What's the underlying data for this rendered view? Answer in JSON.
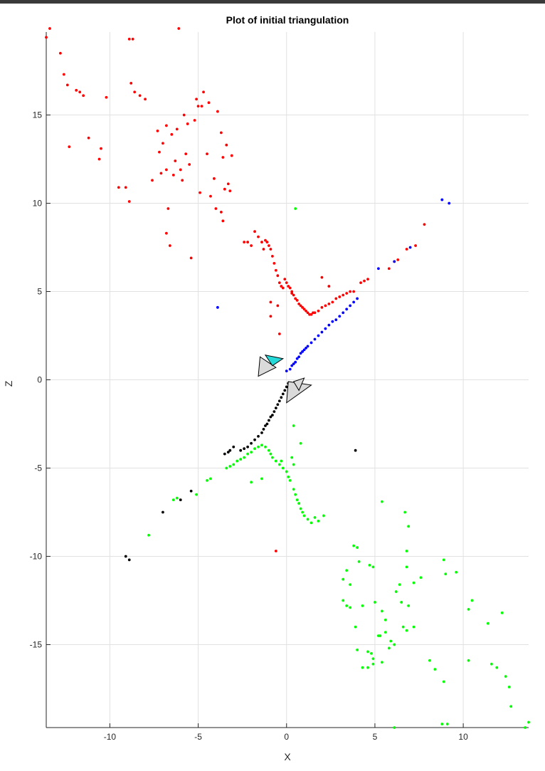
{
  "chart_data": {
    "type": "scatter",
    "title": "Plot of initial triangulation",
    "xlabel": "X",
    "ylabel": "Z",
    "xlim": [
      -13.6,
      13.7
    ],
    "ylim": [
      -19.7,
      19.7
    ],
    "xticks": [
      -10,
      -5,
      0,
      5,
      10
    ],
    "yticks": [
      -15,
      -10,
      -5,
      0,
      5,
      10,
      15
    ],
    "grid": true,
    "series": [
      {
        "color": "#ff0000",
        "points": [
          [
            -13.6,
            19.4
          ],
          [
            -13.4,
            19.9
          ],
          [
            -12.8,
            18.5
          ],
          [
            -12.6,
            17.3
          ],
          [
            -12.4,
            16.7
          ],
          [
            -12.3,
            13.2
          ],
          [
            -11.9,
            16.4
          ],
          [
            -11.7,
            16.3
          ],
          [
            -11.5,
            16.1
          ],
          [
            -11.2,
            13.7
          ],
          [
            -10.6,
            12.5
          ],
          [
            -10.5,
            13.1
          ],
          [
            -10.2,
            16
          ],
          [
            -9.5,
            10.9
          ],
          [
            -9.1,
            10.9
          ],
          [
            -8.9,
            19.3
          ],
          [
            -8.9,
            10.1
          ],
          [
            -8.7,
            19.3
          ],
          [
            -8.8,
            16.8
          ],
          [
            -8.6,
            16.3
          ],
          [
            -8.3,
            16.1
          ],
          [
            -8,
            15.9
          ],
          [
            -7.6,
            11.3
          ],
          [
            -7.3,
            14.1
          ],
          [
            -7.2,
            12.9
          ],
          [
            -7.1,
            11.7
          ],
          [
            -7,
            13.4
          ],
          [
            -6.8,
            11.9
          ],
          [
            -6.8,
            14.4
          ],
          [
            -6.7,
            9.7
          ],
          [
            -6.6,
            7.6
          ],
          [
            -6.8,
            8.3
          ],
          [
            -6.5,
            13.9
          ],
          [
            -6.4,
            11.6
          ],
          [
            -6.3,
            12.4
          ],
          [
            -6.2,
            14.2
          ],
          [
            -6.1,
            19.9
          ],
          [
            -6,
            11.9
          ],
          [
            -5.9,
            11.3
          ],
          [
            -5.8,
            15
          ],
          [
            -5.7,
            12.8
          ],
          [
            -5.6,
            14.5
          ],
          [
            -5.5,
            12.2
          ],
          [
            -5.4,
            6.9
          ],
          [
            -5.2,
            14.7
          ],
          [
            -5.1,
            15.9
          ],
          [
            -5,
            15.5
          ],
          [
            -4.9,
            10.6
          ],
          [
            -4.8,
            15.5
          ],
          [
            -4.7,
            16.3
          ],
          [
            -4.5,
            12.8
          ],
          [
            -4.4,
            15.7
          ],
          [
            -4.3,
            10.4
          ],
          [
            -4.1,
            11.4
          ],
          [
            -4,
            9.7
          ],
          [
            -3.9,
            15.2
          ],
          [
            -3.7,
            14
          ],
          [
            -3.6,
            12.6
          ],
          [
            -3.5,
            10.8
          ],
          [
            -3.4,
            13.3
          ],
          [
            -3.3,
            11.1
          ],
          [
            -3.2,
            10.7
          ],
          [
            -3.1,
            12.7
          ],
          [
            -3.7,
            9.5
          ],
          [
            -3.6,
            9
          ],
          [
            -2.4,
            7.8
          ],
          [
            -2.2,
            7.8
          ],
          [
            -2,
            7.6
          ],
          [
            -1.8,
            8.4
          ],
          [
            -1.6,
            8.1
          ],
          [
            -1.4,
            7.8
          ],
          [
            -1.3,
            7.4
          ],
          [
            -1.2,
            7.9
          ],
          [
            -1.1,
            7.8
          ],
          [
            -1,
            7.6
          ],
          [
            -0.9,
            7.4
          ],
          [
            -0.8,
            7
          ],
          [
            -0.7,
            6.6
          ],
          [
            -0.6,
            6.2
          ],
          [
            -0.5,
            5.9
          ],
          [
            -0.4,
            5.5
          ],
          [
            -0.3,
            5.3
          ],
          [
            -0.2,
            5.2
          ],
          [
            -0.1,
            5.7
          ],
          [
            0,
            5.5
          ],
          [
            0.1,
            5.3
          ],
          [
            0.2,
            5.2
          ],
          [
            0.3,
            5
          ],
          [
            0.4,
            4.8
          ],
          [
            0.5,
            4.6
          ],
          [
            0.6,
            4.5
          ],
          [
            0.7,
            4.3
          ],
          [
            0.8,
            4.2
          ],
          [
            0.9,
            4.1
          ],
          [
            1,
            4
          ],
          [
            1.1,
            3.9
          ],
          [
            1.2,
            3.8
          ],
          [
            1.3,
            3.7
          ],
          [
            1.4,
            3.7
          ],
          [
            1.5,
            3.8
          ],
          [
            1.6,
            3.8
          ],
          [
            1.8,
            3.9
          ],
          [
            2,
            4.1
          ],
          [
            2.2,
            4.2
          ],
          [
            2.4,
            4.3
          ],
          [
            2.6,
            4.4
          ],
          [
            2.8,
            4.6
          ],
          [
            3,
            4.7
          ],
          [
            3.2,
            4.8
          ],
          [
            3.4,
            4.9
          ],
          [
            3.6,
            5
          ],
          [
            3.8,
            5
          ],
          [
            4.2,
            5.5
          ],
          [
            4.4,
            5.6
          ],
          [
            4.6,
            5.7
          ],
          [
            5.8,
            6.3
          ],
          [
            6.1,
            6.7
          ],
          [
            6.3,
            6.8
          ],
          [
            6.8,
            7.4
          ],
          [
            7.3,
            7.6
          ],
          [
            7.8,
            8.8
          ],
          [
            -0.9,
            3.6
          ],
          [
            -0.4,
            2.6
          ],
          [
            -0.9,
            4.4
          ],
          [
            -0.5,
            4.2
          ],
          [
            0.3,
            4.9
          ],
          [
            2,
            5.8
          ],
          [
            2.4,
            5.3
          ],
          [
            -0.6,
            -9.7
          ]
        ]
      },
      {
        "color": "#0000ff",
        "points": [
          [
            -3.9,
            4.1
          ],
          [
            0,
            0.5
          ],
          [
            0.2,
            0.6
          ],
          [
            0.3,
            0.8
          ],
          [
            0.4,
            0.9
          ],
          [
            0.5,
            1
          ],
          [
            0.6,
            1.2
          ],
          [
            0.7,
            1.3
          ],
          [
            0.8,
            1.5
          ],
          [
            0.9,
            1.6
          ],
          [
            1,
            1.7
          ],
          [
            1.1,
            1.8
          ],
          [
            1.2,
            1.9
          ],
          [
            1.4,
            2.1
          ],
          [
            1.6,
            2.3
          ],
          [
            1.8,
            2.5
          ],
          [
            2,
            2.7
          ],
          [
            2.2,
            2.9
          ],
          [
            2.4,
            3.1
          ],
          [
            2.6,
            3.3
          ],
          [
            2.8,
            3.4
          ],
          [
            3,
            3.6
          ],
          [
            3.2,
            3.8
          ],
          [
            3.4,
            4
          ],
          [
            3.6,
            4.2
          ],
          [
            3.8,
            4.4
          ],
          [
            4,
            4.6
          ],
          [
            5.2,
            6.3
          ],
          [
            6.1,
            6.7
          ],
          [
            7,
            7.5
          ],
          [
            8.8,
            10.2
          ],
          [
            9.2,
            10
          ]
        ]
      },
      {
        "color": "#000000",
        "points": [
          [
            0.1,
            -0.2
          ],
          [
            0,
            -0.4
          ],
          [
            -0.1,
            -0.6
          ],
          [
            -0.2,
            -0.8
          ],
          [
            -0.3,
            -1
          ],
          [
            -0.4,
            -1.2
          ],
          [
            -0.5,
            -1.4
          ],
          [
            -0.6,
            -1.6
          ],
          [
            -0.7,
            -1.8
          ],
          [
            -0.8,
            -2
          ],
          [
            -0.9,
            -2.1
          ],
          [
            -1,
            -2.3
          ],
          [
            -1.1,
            -2.5
          ],
          [
            -1.2,
            -2.6
          ],
          [
            -1.3,
            -2.8
          ],
          [
            -1.4,
            -3
          ],
          [
            -1.6,
            -3.2
          ],
          [
            -1.8,
            -3.4
          ],
          [
            -2,
            -3.6
          ],
          [
            -2.2,
            -3.8
          ],
          [
            -2.4,
            -3.9
          ],
          [
            -2.6,
            -4
          ],
          [
            -3,
            -3.8
          ],
          [
            -3.3,
            -4.1
          ],
          [
            -3.5,
            -4.2
          ],
          [
            -3.2,
            -4
          ],
          [
            -5.4,
            -6.3
          ],
          [
            -6,
            -6.8
          ],
          [
            -7,
            -7.5
          ],
          [
            -9.1,
            -10
          ],
          [
            -8.9,
            -10.2
          ],
          [
            3.9,
            -4
          ]
        ]
      },
      {
        "color": "#00ff00",
        "points": [
          [
            0.5,
            9.7
          ],
          [
            0.4,
            -2.6
          ],
          [
            0.8,
            -3.6
          ],
          [
            -7.8,
            -8.8
          ],
          [
            -6.4,
            -6.8
          ],
          [
            -6.2,
            -6.7
          ],
          [
            -5.1,
            -6.5
          ],
          [
            -4.5,
            -5.7
          ],
          [
            -4.3,
            -5.6
          ],
          [
            -3.4,
            -5
          ],
          [
            -3.2,
            -4.9
          ],
          [
            -3,
            -4.8
          ],
          [
            -2.8,
            -4.6
          ],
          [
            -2.6,
            -4.5
          ],
          [
            -2.4,
            -4.4
          ],
          [
            -2.2,
            -4.2
          ],
          [
            -2,
            -4.1
          ],
          [
            -1.8,
            -3.9
          ],
          [
            -1.6,
            -3.8
          ],
          [
            -1.4,
            -3.7
          ],
          [
            -1.2,
            -3.8
          ],
          [
            -1,
            -4
          ],
          [
            -0.9,
            -4.2
          ],
          [
            -0.8,
            -4.4
          ],
          [
            -0.6,
            -4.6
          ],
          [
            -0.4,
            -4.8
          ],
          [
            -0.2,
            -5
          ],
          [
            0,
            -5.2
          ],
          [
            0.1,
            -5.5
          ],
          [
            0.2,
            -5.7
          ],
          [
            -0.3,
            -4.6
          ],
          [
            0.3,
            -4.4
          ],
          [
            0.4,
            -4.8
          ],
          [
            0.4,
            -6.2
          ],
          [
            0.5,
            -6.5
          ],
          [
            0.6,
            -6.8
          ],
          [
            0.7,
            -7
          ],
          [
            0.8,
            -7.3
          ],
          [
            0.9,
            -7.5
          ],
          [
            1,
            -7.7
          ],
          [
            1.2,
            -7.9
          ],
          [
            1.4,
            -8.1
          ],
          [
            1.6,
            -7.8
          ],
          [
            1.8,
            -8
          ],
          [
            2.1,
            -7.7
          ],
          [
            -1.4,
            -5.6
          ],
          [
            -2,
            -5.8
          ],
          [
            5.4,
            -6.9
          ],
          [
            6.7,
            -7.5
          ],
          [
            6.9,
            -8.3
          ],
          [
            6.8,
            -9.7
          ],
          [
            6.8,
            -10.6
          ],
          [
            6.4,
            -11.6
          ],
          [
            6.2,
            -12
          ],
          [
            6.5,
            -12.6
          ],
          [
            6.9,
            -12.8
          ],
          [
            7.2,
            -11.5
          ],
          [
            7.6,
            -11.2
          ],
          [
            8.9,
            -10.2
          ],
          [
            9,
            -11
          ],
          [
            9.6,
            -10.9
          ],
          [
            3.8,
            -9.4
          ],
          [
            4,
            -9.5
          ],
          [
            4.1,
            -10.3
          ],
          [
            3.4,
            -10.8
          ],
          [
            3.2,
            -11.3
          ],
          [
            3.6,
            -11.6
          ],
          [
            3.2,
            -12.5
          ],
          [
            3.4,
            -12.8
          ],
          [
            3.6,
            -12.9
          ],
          [
            3.9,
            -14
          ],
          [
            4.3,
            -12.8
          ],
          [
            4.7,
            -10.5
          ],
          [
            4.9,
            -10.6
          ],
          [
            5,
            -12.6
          ],
          [
            5.4,
            -13.1
          ],
          [
            5.6,
            -13.6
          ],
          [
            5.3,
            -14.5
          ],
          [
            5.6,
            -14.3
          ],
          [
            5.9,
            -14.8
          ],
          [
            6.1,
            -15
          ],
          [
            6.6,
            -14
          ],
          [
            6.8,
            -14.2
          ],
          [
            7.2,
            -14
          ],
          [
            4,
            -15.3
          ],
          [
            4.6,
            -15.4
          ],
          [
            4.8,
            -15.5
          ],
          [
            4.9,
            -15.8
          ],
          [
            4.6,
            -16.3
          ],
          [
            4.3,
            -16.3
          ],
          [
            4.9,
            -16.1
          ],
          [
            5.2,
            -14.5
          ],
          [
            5.4,
            -16
          ],
          [
            5.8,
            -15.2
          ],
          [
            8.1,
            -15.9
          ],
          [
            8.4,
            -16.4
          ],
          [
            8.9,
            -17.1
          ],
          [
            8.8,
            -19.5
          ],
          [
            9.1,
            -19.5
          ],
          [
            10.3,
            -13
          ],
          [
            10.5,
            -12.5
          ],
          [
            10.3,
            -15.9
          ],
          [
            11.4,
            -13.8
          ],
          [
            11.6,
            -16.1
          ],
          [
            11.9,
            -16.3
          ],
          [
            12.2,
            -13.2
          ],
          [
            12.4,
            -16.8
          ],
          [
            12.6,
            -17.4
          ],
          [
            12.7,
            -18.5
          ],
          [
            13.7,
            -19.4
          ],
          [
            13.5,
            -19.7
          ],
          [
            6.1,
            -19.7
          ]
        ]
      }
    ],
    "cameras": [
      {
        "fill": "#dadada",
        "points": [
          [
            -1.6,
            0.2
          ],
          [
            -1.5,
            1.3
          ],
          [
            -0.6,
            0.7
          ]
        ]
      },
      {
        "fill": "#26d9d9",
        "points": [
          [
            -1.2,
            1.4
          ],
          [
            -0.2,
            1.2
          ],
          [
            -0.8,
            0.8
          ]
        ]
      },
      {
        "fill": "#dadada",
        "points": [
          [
            0,
            -1.3
          ],
          [
            0.1,
            -0.1
          ],
          [
            1.4,
            -0.3
          ]
        ]
      },
      {
        "fill": "#dadada",
        "points": [
          [
            0.4,
            -0.1
          ],
          [
            1,
            0.1
          ],
          [
            0.7,
            -0.6
          ]
        ]
      }
    ]
  }
}
